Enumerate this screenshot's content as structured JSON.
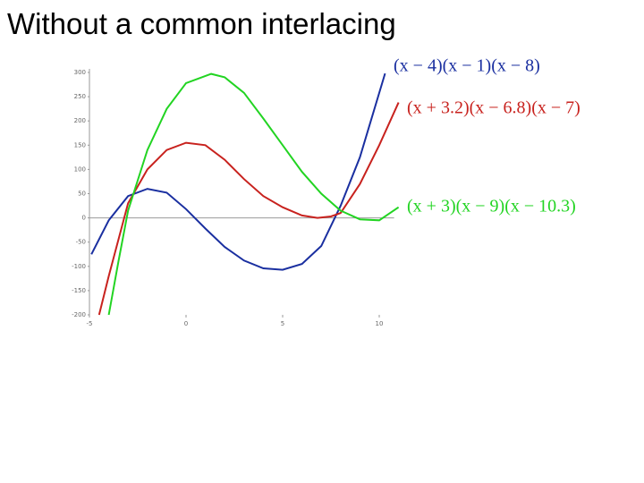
{
  "chart_data": {
    "type": "line",
    "title": "Without a common interlacing",
    "xlim": [
      -5,
      11
    ],
    "ylim": [
      -200,
      300
    ],
    "xticks": [
      -5,
      0,
      5,
      10
    ],
    "yticks": [
      -200,
      -150,
      -100,
      -50,
      0,
      50,
      100,
      150,
      200,
      250,
      300
    ],
    "series": [
      {
        "name": "(x − 4)(x − 1)(x − 8)",
        "color": "#1a2fa0",
        "x": [
          -4.9,
          -4,
          -3,
          -2,
          -1,
          0,
          1,
          2,
          3,
          4,
          5,
          6,
          7,
          8,
          9,
          10.3
        ],
        "values": [
          -75,
          -5,
          45,
          60,
          52,
          18,
          -22,
          -60,
          -88,
          -104,
          -107,
          -95,
          -58,
          25,
          125,
          298
        ]
      },
      {
        "name": "(x + 3.2)(x − 6.8)(x − 7)",
        "color": "#c8221e",
        "x": [
          -4.5,
          -4,
          -3,
          -2,
          -1,
          0,
          1,
          2,
          3,
          4,
          5,
          6,
          6.8,
          7.5,
          8,
          9,
          10,
          11
        ],
        "values": [
          -200,
          -120,
          30,
          100,
          140,
          155,
          150,
          120,
          80,
          45,
          22,
          5,
          0,
          3,
          10,
          70,
          150,
          238
        ]
      },
      {
        "name": "(x + 3)(x − 9)(x − 10.3)",
        "color": "#22d422",
        "x": [
          -4,
          -3.5,
          -3,
          -2,
          -1,
          0,
          1.3,
          2,
          3,
          4,
          5,
          6,
          7,
          8,
          9,
          10,
          11
        ],
        "values": [
          -200,
          -90,
          15,
          140,
          225,
          278,
          297,
          290,
          258,
          205,
          150,
          95,
          50,
          15,
          -3,
          -5,
          22
        ]
      }
    ]
  }
}
